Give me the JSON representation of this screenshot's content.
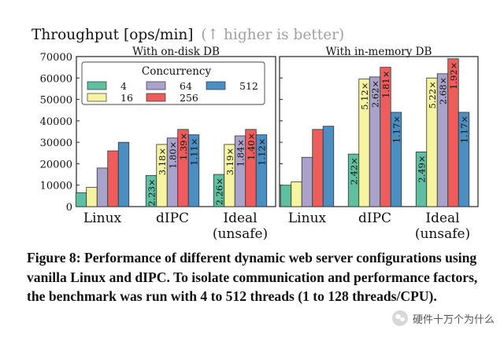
{
  "chart_data": {
    "type": "bar",
    "title": "Throughput [ops/min]",
    "title_note": "(↑ higher is better)",
    "ylabel": "Throughput [ops/min]",
    "ylim": [
      0,
      70000
    ],
    "yticks": [
      0,
      10000,
      20000,
      30000,
      40000,
      50000,
      60000,
      70000
    ],
    "grid": false,
    "legend": {
      "title": "Concurrency",
      "placement": "top-left (inside left panel)",
      "entries": [
        "4",
        "16",
        "64",
        "256",
        "512"
      ]
    },
    "series_colors": {
      "4": "#5fbfa0",
      "16": "#f6f3a1",
      "64": "#a9a3cb",
      "256": "#ee5c5c",
      "512": "#4a8ec2"
    },
    "panels": [
      {
        "title": "With on-disk DB",
        "categories": [
          "Linux",
          "dIPC",
          "Ideal\n(unsafe)"
        ],
        "series": [
          {
            "name": "4",
            "values": [
              6500,
              14500,
              15000
            ],
            "labels": [
              "",
              "2.23×",
              "2.26×"
            ]
          },
          {
            "name": "16",
            "values": [
              9000,
              29000,
              29000
            ],
            "labels": [
              "",
              "3.18×",
              "3.19×"
            ]
          },
          {
            "name": "64",
            "values": [
              18000,
              32000,
              33000
            ],
            "labels": [
              "",
              "1.80×",
              "1.84×"
            ]
          },
          {
            "name": "256",
            "values": [
              26000,
              36000,
              36000
            ],
            "labels": [
              "",
              "1.39×",
              "1.40×"
            ]
          },
          {
            "name": "512",
            "values": [
              30000,
              33500,
              33500
            ],
            "labels": [
              "",
              "1.11×",
              "1.12×"
            ]
          }
        ]
      },
      {
        "title": "With in-memory DB",
        "categories": [
          "Linux",
          "dIPC",
          "Ideal\n(unsafe)"
        ],
        "series": [
          {
            "name": "4",
            "values": [
              10000,
              24500,
              25500
            ],
            "labels": [
              "",
              "2.42×",
              "2.49×"
            ]
          },
          {
            "name": "16",
            "values": [
              11500,
              59500,
              60000
            ],
            "labels": [
              "",
              "5.12×",
              "5.22×"
            ]
          },
          {
            "name": "64",
            "values": [
              23000,
              60500,
              62000
            ],
            "labels": [
              "",
              "2.62×",
              "2.68×"
            ]
          },
          {
            "name": "256",
            "values": [
              36000,
              65000,
              69000
            ],
            "labels": [
              "",
              "1.81×",
              "1.92×"
            ]
          },
          {
            "name": "512",
            "values": [
              37500,
              44000,
              44000
            ],
            "labels": [
              "",
              "1.17×",
              "1.17×"
            ]
          }
        ]
      }
    ]
  },
  "caption": "Figure 8: Performance of different dynamic web server configurations using vanilla Linux and dIPC. To isolate communication and performance factors, the benchmark was run with 4 to 512 threads (1 to 128 threads/CPU).",
  "watermark": "硬件十万个为什么"
}
